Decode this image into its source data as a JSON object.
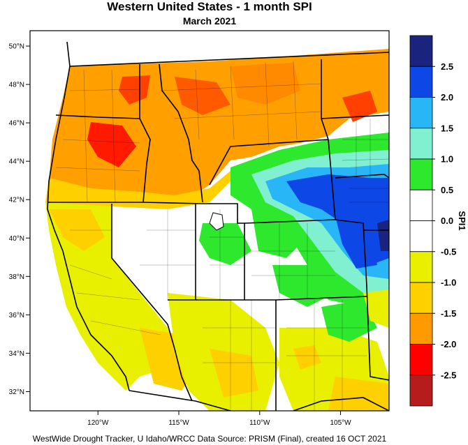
{
  "header": {
    "title": "Western United States - 1 month SPI",
    "subtitle": "March 2021"
  },
  "footer": {
    "credit": "WestWide Drought Tracker, U Idaho/WRCC Data Source: PRISM (Final), created 16 OCT 2021"
  },
  "map": {
    "lon_range": [
      -124.2,
      -102.0
    ],
    "lat_range": [
      31.0,
      50.8
    ],
    "lat_ticks": [
      {
        "value": 50,
        "label": "50°N"
      },
      {
        "value": 48,
        "label": "48°N"
      },
      {
        "value": 46,
        "label": "46°N"
      },
      {
        "value": 44,
        "label": "44°N"
      },
      {
        "value": 42,
        "label": "42°N"
      },
      {
        "value": 40,
        "label": "40°N"
      },
      {
        "value": 38,
        "label": "38°N"
      },
      {
        "value": 36,
        "label": "36°N"
      },
      {
        "value": 34,
        "label": "34°N"
      },
      {
        "value": 32,
        "label": "32°N"
      }
    ],
    "lon_ticks": [
      {
        "value": -120,
        "label": "120°W"
      },
      {
        "value": -115,
        "label": "115°W"
      },
      {
        "value": -110,
        "label": "110°W"
      },
      {
        "value": -105,
        "label": "105°W"
      }
    ],
    "colorbar": {
      "title": "SPI1",
      "labels": [
        "2.5",
        "2.0",
        "1.5",
        "1.0",
        "0.5",
        "0.0",
        "-0.5",
        "-1.0",
        "-1.5",
        "-2.0",
        "-2.5"
      ],
      "colors": [
        "#1a237e",
        "#0d47e6",
        "#29b6f6",
        "#80f0d0",
        "#2ee82e",
        "#ffffff",
        "#ffffff",
        "#e8f000",
        "#ffd000",
        "#ff9a00",
        "#ff0000",
        "#b71c1c"
      ]
    }
  }
}
